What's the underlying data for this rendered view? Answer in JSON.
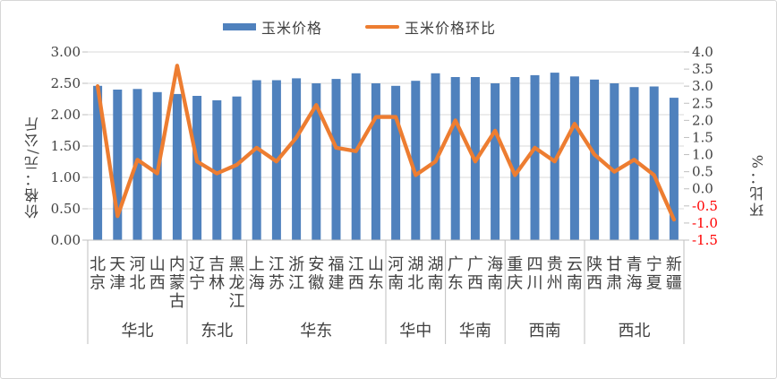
{
  "chart_data": {
    "type": "bar+line",
    "title": "",
    "legend_position": "top",
    "categories": [
      "北京",
      "天津",
      "河北",
      "山西",
      "内蒙古",
      "辽宁",
      "吉林",
      "黑龙江",
      "上海",
      "江苏",
      "浙江",
      "安徽",
      "福建",
      "江西",
      "山东",
      "河南",
      "湖北",
      "湖南",
      "广东",
      "广西",
      "海南",
      "重庆",
      "四川",
      "贵州",
      "云南",
      "陕西",
      "甘肃",
      "青海",
      "宁夏",
      "新疆"
    ],
    "category_groups": [
      {
        "label": "华北",
        "count": 5
      },
      {
        "label": "东北",
        "count": 3
      },
      {
        "label": "华东",
        "count": 7
      },
      {
        "label": "华中",
        "count": 3
      },
      {
        "label": "华南",
        "count": 3
      },
      {
        "label": "西南",
        "count": 4
      },
      {
        "label": "西北",
        "count": 5
      }
    ],
    "series": [
      {
        "name": "玉米价格",
        "type": "bar",
        "axis": "left",
        "unit": "元/公斤",
        "values": [
          2.46,
          2.4,
          2.41,
          2.36,
          2.33,
          2.3,
          2.23,
          2.29,
          2.55,
          2.55,
          2.58,
          2.5,
          2.57,
          2.66,
          2.5,
          2.46,
          2.54,
          2.66,
          2.6,
          2.6,
          2.5,
          2.6,
          2.63,
          2.67,
          2.61,
          2.56,
          2.5,
          2.44,
          2.45,
          2.27
        ]
      },
      {
        "name": "玉米价格环比",
        "type": "line",
        "axis": "right",
        "unit": "%",
        "values": [
          3.0,
          -0.8,
          0.85,
          0.45,
          3.6,
          0.8,
          0.45,
          0.7,
          1.2,
          0.8,
          1.5,
          2.45,
          1.2,
          1.1,
          2.1,
          2.1,
          0.4,
          0.8,
          2.0,
          0.8,
          1.7,
          0.4,
          1.2,
          0.8,
          1.9,
          1.0,
          0.5,
          0.85,
          0.4,
          -0.9
        ]
      }
    ],
    "left_axis": {
      "title": "价格：元/公斤",
      "min": 0,
      "max": 3,
      "step": 0.5,
      "tick_labels": [
        "0.00",
        "0.50",
        "1.00",
        "1.50",
        "2.00",
        "2.50",
        "3.00"
      ],
      "tick_values": [
        0,
        0.5,
        1,
        1.5,
        2,
        2.5,
        3
      ]
    },
    "right_axis": {
      "title": "环比：%",
      "min": -1.5,
      "max": 4,
      "step": 0.5,
      "tick_labels": [
        "-1.5",
        "-1.0",
        "-0.5",
        "0.0",
        "0.5",
        "1.0",
        "1.5",
        "2.0",
        "2.5",
        "3.0",
        "3.5",
        "4.0"
      ],
      "tick_values": [
        -1.5,
        -1.0,
        -0.5,
        0.0,
        0.5,
        1.0,
        1.5,
        2.0,
        2.5,
        3.0,
        3.5,
        4.0
      ],
      "negative_tick_color": "#FF0000"
    },
    "grid": "horizontal",
    "colors": {
      "bar": "#4F81BD",
      "line": "#ED7D31",
      "gridline": "#D9D9D9",
      "axis_line": "#BFBFBF",
      "text": "#404040",
      "border": "#D6D6D6"
    }
  }
}
